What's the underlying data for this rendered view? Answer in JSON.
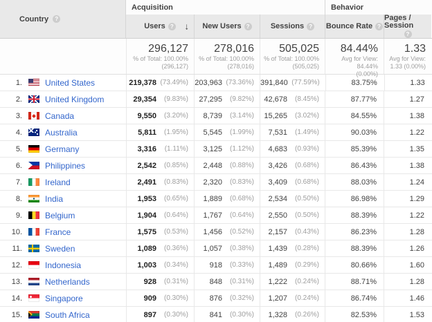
{
  "colors": {
    "link_blue": "#3366cc",
    "header_gray": "#e9e9e9",
    "value_dark": "#424242",
    "pct_gray": "#9e9e9e"
  },
  "icons": {
    "help": "?",
    "sort_descending": "↓"
  },
  "table": {
    "country_header": "Country",
    "groups": [
      {
        "label": "Acquisition"
      },
      {
        "label": "Behavior"
      }
    ],
    "columns": [
      {
        "label": "Users",
        "sorted": "descending"
      },
      {
        "label": "New Users"
      },
      {
        "label": "Sessions"
      },
      {
        "label": "Bounce Rate"
      },
      {
        "label": "Pages / Session"
      }
    ],
    "totals": {
      "users": {
        "value": "296,127",
        "sub1": "% of Total: 100.00%",
        "sub2": "(296,127)"
      },
      "new_users": {
        "value": "278,016",
        "sub1": "% of Total: 100.00%",
        "sub2": "(278,016)"
      },
      "sessions": {
        "value": "505,025",
        "sub1": "% of Total: 100.00%",
        "sub2": "(505,025)"
      },
      "bounce_rate": {
        "value": "84.44%",
        "sub1": "Avg for View: 84.44%",
        "sub2": "(0.00%)"
      },
      "pages_per_session": {
        "value": "1.33",
        "sub1": "Avg for View:",
        "sub2": "1.33 (0.00%)"
      }
    },
    "rows": [
      {
        "rank": "1.",
        "flag": "us",
        "country": "United States",
        "users": "219,378",
        "users_pct": "(73.49%)",
        "new_users": "203,963",
        "new_users_pct": "(73.36%)",
        "sessions": "391,840",
        "sessions_pct": "(77.59%)",
        "bounce_rate": "83.75%",
        "pages_per_session": "1.33"
      },
      {
        "rank": "2.",
        "flag": "gb",
        "country": "United Kingdom",
        "users": "29,354",
        "users_pct": "(9.83%)",
        "new_users": "27,295",
        "new_users_pct": "(9.82%)",
        "sessions": "42,678",
        "sessions_pct": "(8.45%)",
        "bounce_rate": "87.77%",
        "pages_per_session": "1.27"
      },
      {
        "rank": "3.",
        "flag": "ca",
        "country": "Canada",
        "users": "9,550",
        "users_pct": "(3.20%)",
        "new_users": "8,739",
        "new_users_pct": "(3.14%)",
        "sessions": "15,265",
        "sessions_pct": "(3.02%)",
        "bounce_rate": "84.55%",
        "pages_per_session": "1.38"
      },
      {
        "rank": "4.",
        "flag": "au",
        "country": "Australia",
        "users": "5,811",
        "users_pct": "(1.95%)",
        "new_users": "5,545",
        "new_users_pct": "(1.99%)",
        "sessions": "7,531",
        "sessions_pct": "(1.49%)",
        "bounce_rate": "90.03%",
        "pages_per_session": "1.22"
      },
      {
        "rank": "5.",
        "flag": "de",
        "country": "Germany",
        "users": "3,316",
        "users_pct": "(1.11%)",
        "new_users": "3,125",
        "new_users_pct": "(1.12%)",
        "sessions": "4,683",
        "sessions_pct": "(0.93%)",
        "bounce_rate": "85.39%",
        "pages_per_session": "1.35"
      },
      {
        "rank": "6.",
        "flag": "ph",
        "country": "Philippines",
        "users": "2,542",
        "users_pct": "(0.85%)",
        "new_users": "2,448",
        "new_users_pct": "(0.88%)",
        "sessions": "3,426",
        "sessions_pct": "(0.68%)",
        "bounce_rate": "86.43%",
        "pages_per_session": "1.38"
      },
      {
        "rank": "7.",
        "flag": "ie",
        "country": "Ireland",
        "users": "2,491",
        "users_pct": "(0.83%)",
        "new_users": "2,320",
        "new_users_pct": "(0.83%)",
        "sessions": "3,409",
        "sessions_pct": "(0.68%)",
        "bounce_rate": "88.03%",
        "pages_per_session": "1.24"
      },
      {
        "rank": "8.",
        "flag": "in",
        "country": "India",
        "users": "1,953",
        "users_pct": "(0.65%)",
        "new_users": "1,889",
        "new_users_pct": "(0.68%)",
        "sessions": "2,534",
        "sessions_pct": "(0.50%)",
        "bounce_rate": "86.98%",
        "pages_per_session": "1.29"
      },
      {
        "rank": "9.",
        "flag": "be",
        "country": "Belgium",
        "users": "1,904",
        "users_pct": "(0.64%)",
        "new_users": "1,767",
        "new_users_pct": "(0.64%)",
        "sessions": "2,550",
        "sessions_pct": "(0.50%)",
        "bounce_rate": "88.39%",
        "pages_per_session": "1.22"
      },
      {
        "rank": "10.",
        "flag": "fr",
        "country": "France",
        "users": "1,575",
        "users_pct": "(0.53%)",
        "new_users": "1,456",
        "new_users_pct": "(0.52%)",
        "sessions": "2,157",
        "sessions_pct": "(0.43%)",
        "bounce_rate": "86.23%",
        "pages_per_session": "1.28"
      },
      {
        "rank": "11.",
        "flag": "se",
        "country": "Sweden",
        "users": "1,089",
        "users_pct": "(0.36%)",
        "new_users": "1,057",
        "new_users_pct": "(0.38%)",
        "sessions": "1,439",
        "sessions_pct": "(0.28%)",
        "bounce_rate": "88.39%",
        "pages_per_session": "1.26"
      },
      {
        "rank": "12.",
        "flag": "id",
        "country": "Indonesia",
        "users": "1,003",
        "users_pct": "(0.34%)",
        "new_users": "918",
        "new_users_pct": "(0.33%)",
        "sessions": "1,489",
        "sessions_pct": "(0.29%)",
        "bounce_rate": "80.66%",
        "pages_per_session": "1.60"
      },
      {
        "rank": "13.",
        "flag": "nl",
        "country": "Netherlands",
        "users": "928",
        "users_pct": "(0.31%)",
        "new_users": "848",
        "new_users_pct": "(0.31%)",
        "sessions": "1,222",
        "sessions_pct": "(0.24%)",
        "bounce_rate": "88.71%",
        "pages_per_session": "1.28"
      },
      {
        "rank": "14.",
        "flag": "sg",
        "country": "Singapore",
        "users": "909",
        "users_pct": "(0.30%)",
        "new_users": "876",
        "new_users_pct": "(0.32%)",
        "sessions": "1,207",
        "sessions_pct": "(0.24%)",
        "bounce_rate": "86.74%",
        "pages_per_session": "1.46"
      },
      {
        "rank": "15.",
        "flag": "za",
        "country": "South Africa",
        "users": "897",
        "users_pct": "(0.30%)",
        "new_users": "841",
        "new_users_pct": "(0.30%)",
        "sessions": "1,328",
        "sessions_pct": "(0.26%)",
        "bounce_rate": "82.53%",
        "pages_per_session": "1.53"
      }
    ]
  }
}
